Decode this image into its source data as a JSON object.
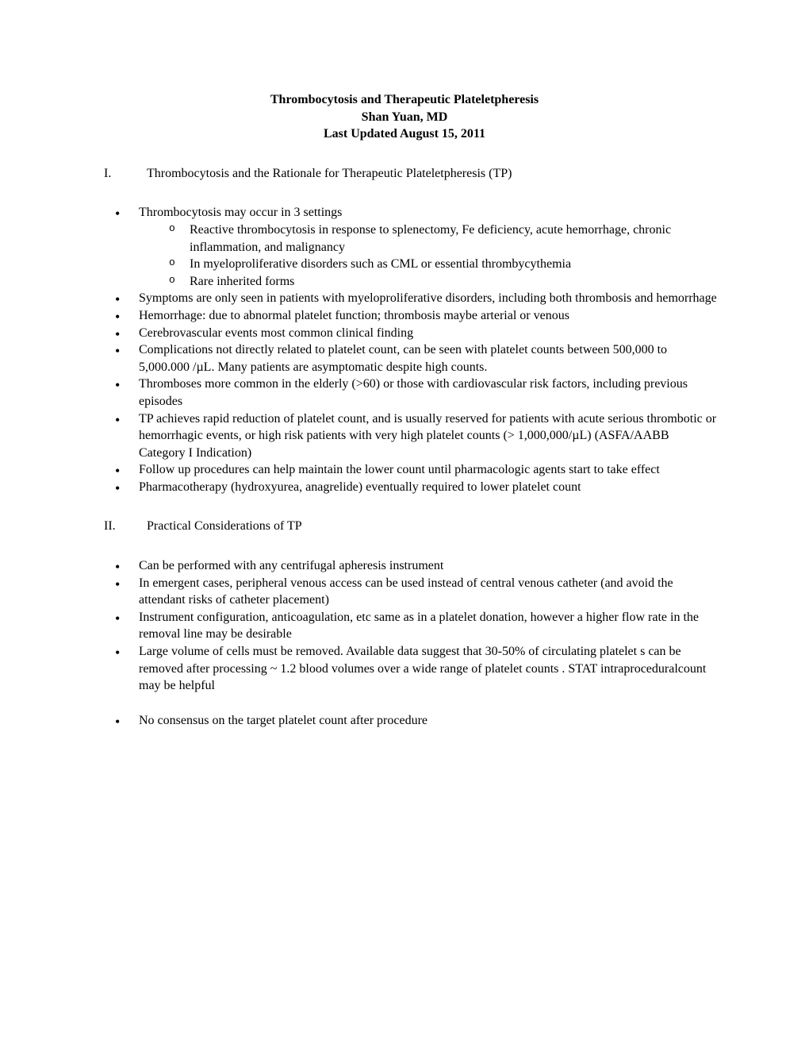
{
  "title": {
    "line1": "Thrombocytosis and Therapeutic Plateletpheresis",
    "line2": "Shan Yuan, MD",
    "line3": "Last Updated August 15, 2011"
  },
  "section1": {
    "roman": "I.",
    "heading": "Thrombocytosis and the Rationale for  Therapeutic Plateletpheresis (TP)",
    "bullets": [
      {
        "text": "Thrombocytosis may occur in 3 settings",
        "subs": [
          "Reactive thrombocytosis in response to splenectomy, Fe deficiency, acute hemorrhage, chronic inflammation, and malignancy",
          "In myeloproliferative disorders such as CML or essential thrombycythemia",
          "Rare inherited forms"
        ]
      },
      {
        "text": "Symptoms are only seen in patients with myeloproliferative disorders, including both thrombosis and hemorrhage"
      },
      {
        "text": "Hemorrhage: due to abnormal platelet function; thrombosis maybe arterial or venous"
      },
      {
        "text": "Cerebrovascular events most common clinical finding"
      },
      {
        "text": "Complications not directly related to platelet count, can be seen with platelet counts between 500,000 to 5,000.000 /µL. Many patients are asymptomatic despite high counts."
      },
      {
        "text": "Thromboses more common in the elderly (>60) or those with cardiovascular risk factors, including previous episodes"
      },
      {
        "text": "TP achieves rapid reduction of platelet count, and is usually reserved for patients with acute serious thrombotic or hemorrhagic events, or high risk patients with very high platelet counts (> 1,000,000/µL)  (ASFA/AABB Category I Indication)"
      },
      {
        "text": "Follow up procedures can  help maintain the lower count until pharmacologic agents start to take effect"
      },
      {
        "text": "Pharmacotherapy (hydroxyurea, anagrelide) eventually required to lower platelet count"
      }
    ]
  },
  "section2": {
    "roman": "II.",
    "heading": "Practical Considerations of TP",
    "bullets": [
      {
        "text": "Can be performed with any centrifugal apheresis instrument"
      },
      {
        "text": "In emergent cases, peripheral venous access can be used instead of central venous catheter (and avoid the attendant risks of catheter placement)"
      },
      {
        "text": "Instrument configuration, anticoagulation, etc same as in a platelet donation, however a higher flow rate in the removal line may be desirable"
      },
      {
        "text": "Large volume of cells must be removed. Available data suggest that 30-50% of circulating platelet s can be removed after processing ~ 1.2 blood volumes over a wide range of platelet counts . STAT intraproceduralcount may be helpful"
      }
    ],
    "bullets_after_gap": [
      {
        "text": "No consensus on the target platelet count after procedure"
      }
    ]
  }
}
